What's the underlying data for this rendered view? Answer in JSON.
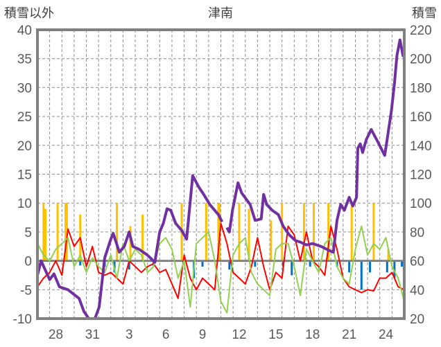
{
  "chart_data": {
    "type": "line",
    "title": "津南",
    "ylabel_left": "積雪以外",
    "ylabel_right": "積雪",
    "ylim_left": [
      -10,
      40
    ],
    "ylim_right": [
      20,
      220
    ],
    "yticks_left": [
      "40",
      "35",
      "30",
      "25",
      "20",
      "15",
      "10",
      "5",
      "0",
      "-5",
      "-10"
    ],
    "yticks_right": [
      "220",
      "200",
      "180",
      "160",
      "140",
      "120",
      "100",
      "80",
      "60",
      "40",
      "20"
    ],
    "x_range_days": [
      0,
      30
    ],
    "xtick_labels": [
      {
        "day": 1,
        "label": "28"
      },
      {
        "day": 4,
        "label": "31"
      },
      {
        "day": 7,
        "label": "3"
      },
      {
        "day": 10,
        "label": "6"
      },
      {
        "day": 13,
        "label": "9"
      },
      {
        "day": 16,
        "label": "12"
      },
      {
        "day": 19,
        "label": "15"
      },
      {
        "day": 22,
        "label": "18"
      },
      {
        "day": 25,
        "label": "21"
      },
      {
        "day": 28,
        "label": "24"
      }
    ],
    "grid": true,
    "colors": {
      "snow_depth": "#7030a0",
      "red_series": "#ff0000",
      "green_series": "#92d050",
      "orange_bars": "#ffc000",
      "blue_bars": "#0070c0",
      "frame": "#808080"
    },
    "series": [
      {
        "name": "積雪",
        "axis": "right",
        "points": [
          [
            0,
            50
          ],
          [
            0.3,
            60
          ],
          [
            1.0,
            47
          ],
          [
            1.35,
            51
          ],
          [
            1.8,
            42
          ],
          [
            2.5,
            40
          ],
          [
            3.4,
            34
          ],
          [
            3.8,
            25
          ],
          [
            4.2,
            20
          ],
          [
            4.7,
            20
          ],
          [
            5.05,
            28
          ],
          [
            5.3,
            47
          ],
          [
            5.5,
            62
          ],
          [
            6.0,
            75
          ],
          [
            6.2,
            79
          ],
          [
            6.7,
            66
          ],
          [
            7.1,
            70
          ],
          [
            7.5,
            80
          ],
          [
            7.8,
            70
          ],
          [
            8.3,
            68
          ],
          [
            9.0,
            64
          ],
          [
            9.6,
            59
          ],
          [
            10.0,
            80
          ],
          [
            10.3,
            86
          ],
          [
            10.6,
            96
          ],
          [
            10.9,
            95
          ],
          [
            11.3,
            86
          ],
          [
            11.8,
            81
          ],
          [
            12.2,
            75
          ],
          [
            12.7,
            119
          ],
          [
            13.2,
            111
          ],
          [
            13.6,
            106
          ],
          [
            14.1,
            99
          ],
          [
            14.8,
            92
          ],
          [
            15.1,
            87
          ],
          null,
          [
            15.5,
            83
          ],
          [
            15.7,
            80
          ],
          [
            15.95,
            95
          ],
          [
            16.4,
            114
          ],
          [
            16.7,
            107
          ],
          [
            17.4,
            99
          ],
          [
            17.8,
            88
          ],
          [
            18.3,
            89
          ],
          [
            18.5,
            106
          ],
          [
            18.75,
            99
          ],
          [
            19.2,
            95
          ],
          [
            19.7,
            92
          ],
          [
            20.1,
            84
          ],
          [
            20.6,
            78
          ],
          [
            21.1,
            74
          ],
          [
            21.5,
            73
          ],
          [
            22.0,
            71
          ],
          [
            22.5,
            72
          ],
          [
            23.2,
            70
          ],
          [
            23.9,
            67
          ],
          [
            24.2,
            66
          ],
          [
            24.5,
            88
          ],
          [
            24.8,
            99
          ],
          [
            25.1,
            95
          ],
          [
            25.5,
            104
          ],
          [
            25.8,
            98
          ],
          [
            26.1,
            104
          ],
          [
            26.2,
            138
          ],
          [
            26.4,
            141
          ],
          [
            26.6,
            135
          ],
          [
            26.9,
            144
          ],
          [
            27.3,
            151
          ],
          [
            27.8,
            143
          ],
          [
            28.4,
            133
          ],
          [
            28.6,
            144
          ],
          [
            28.95,
            164
          ],
          [
            29.2,
            183
          ],
          [
            29.4,
            202
          ],
          [
            29.65,
            213
          ],
          [
            29.9,
            202
          ],
          [
            30,
            206
          ]
        ]
      },
      {
        "name": "red",
        "axis": "left",
        "step": 0.5,
        "values": [
          -4.5,
          -3,
          -2,
          0,
          -2.5,
          5.5,
          2.5,
          4,
          -1,
          2.5,
          -2,
          -2.5,
          -2,
          -3,
          -4,
          0,
          -1,
          -2,
          -1,
          -0.5,
          -2,
          -1.5,
          -4,
          -6.5,
          1,
          -3,
          -5,
          -3,
          -4,
          -5,
          6.5,
          3,
          -2,
          -3,
          -4,
          -1,
          4,
          -1,
          -5,
          -2,
          -3,
          6,
          4.5,
          0,
          5,
          0,
          -1,
          -2.5,
          6,
          2,
          -3,
          -4.5,
          -5,
          -5.5,
          -5,
          -5.2,
          -3,
          -3,
          -2,
          -4.5,
          -5
        ]
      },
      {
        "name": "green",
        "axis": "left",
        "step": 0.5,
        "values": [
          3,
          1,
          0,
          2,
          3,
          4,
          -1,
          1,
          -2,
          0.5,
          -1,
          -2,
          1,
          -3,
          3,
          0,
          2,
          1,
          -2,
          -1,
          3,
          4,
          2,
          -3,
          0,
          -8,
          3,
          4,
          5,
          0,
          -7,
          -9,
          1,
          3,
          4,
          -2,
          -4,
          -5,
          -6,
          2,
          3,
          3,
          -1,
          -6,
          2,
          0,
          -2,
          3,
          4,
          -1,
          -3,
          -4,
          2,
          6,
          1,
          3,
          2,
          4,
          -1,
          -3,
          -7
        ]
      },
      {
        "name": "orange_bars",
        "axis": "left",
        "type": "bar",
        "points": [
          [
            0.5,
            10
          ],
          [
            0.65,
            9
          ],
          [
            1.65,
            10
          ],
          [
            2.3,
            10
          ],
          [
            2.4,
            10
          ],
          [
            3.5,
            8
          ],
          [
            6.5,
            10
          ],
          [
            7.6,
            6
          ],
          [
            8.6,
            8
          ],
          [
            11.8,
            10
          ],
          [
            13.8,
            10
          ],
          [
            14.8,
            10
          ],
          [
            14.9,
            10
          ],
          [
            16.5,
            10
          ],
          [
            17.3,
            9
          ],
          [
            19.1,
            7
          ],
          [
            20.0,
            10
          ],
          [
            21.8,
            10
          ],
          [
            22.6,
            10
          ],
          [
            23.8,
            10
          ],
          [
            25.7,
            10
          ],
          [
            27.5,
            10
          ],
          [
            28.7,
            2
          ]
        ]
      },
      {
        "name": "blue_bars",
        "axis": "left",
        "type": "bar",
        "points": [
          [
            3.5,
            -0.8
          ],
          [
            5.5,
            -1
          ],
          [
            6.3,
            -2
          ],
          [
            7.5,
            -1.5
          ],
          [
            9.5,
            -0.8
          ],
          [
            12.8,
            -3
          ],
          [
            13.5,
            -1
          ],
          [
            15.7,
            -1.5
          ],
          [
            17.8,
            -1
          ],
          [
            20.1,
            -1
          ],
          [
            20.8,
            -2.5
          ],
          [
            22.3,
            -1
          ],
          [
            24.5,
            -1
          ],
          [
            25.5,
            -2
          ],
          [
            26.5,
            -5
          ],
          [
            27.2,
            -2
          ],
          [
            28.6,
            -2
          ],
          [
            29.2,
            -3
          ],
          [
            29.8,
            -1
          ]
        ]
      }
    ]
  }
}
